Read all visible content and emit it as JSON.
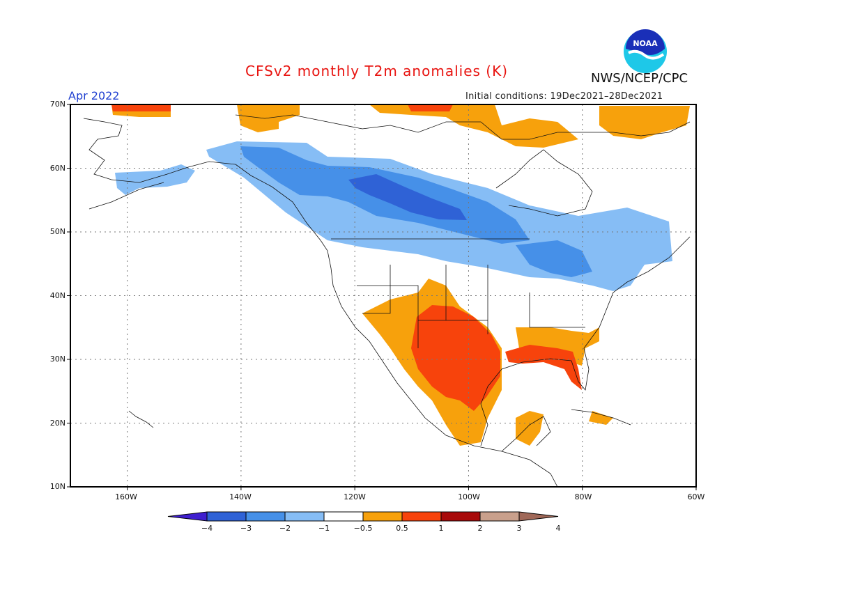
{
  "header": {
    "title": "CFSv2 monthly T2m anomalies (K)",
    "period": "Apr 2022",
    "initial_conditions": "Initial conditions: 19Dec2021–28Dec2021",
    "org": "NWS/NCEP/CPC",
    "logo_text": "NOAA"
  },
  "axes": {
    "lat_labels": [
      "70N",
      "60N",
      "50N",
      "40N",
      "30N",
      "20N",
      "10N"
    ],
    "lon_labels": [
      "160W",
      "140W",
      "120W",
      "100W",
      "80W",
      "60W"
    ]
  },
  "colorbar": {
    "labels": [
      "−4",
      "−3",
      "−2",
      "−1",
      "−0.5",
      "0.5",
      "1",
      "2",
      "3",
      "4"
    ],
    "colors": [
      "#3f1fcf",
      "#2f62d6",
      "#4690e8",
      "#86bdf5",
      "#ffffff",
      "#f7a10c",
      "#f7430c",
      "#a80a0a",
      "#c9a08c",
      "#a06858"
    ]
  },
  "palette": {
    "dark_blue": "#2f62d6",
    "mid_blue": "#4690e8",
    "light_blue": "#86bdf5",
    "orange": "#f7a10c",
    "red_orange": "#f7430c",
    "dark_red": "#b00a0a"
  }
}
